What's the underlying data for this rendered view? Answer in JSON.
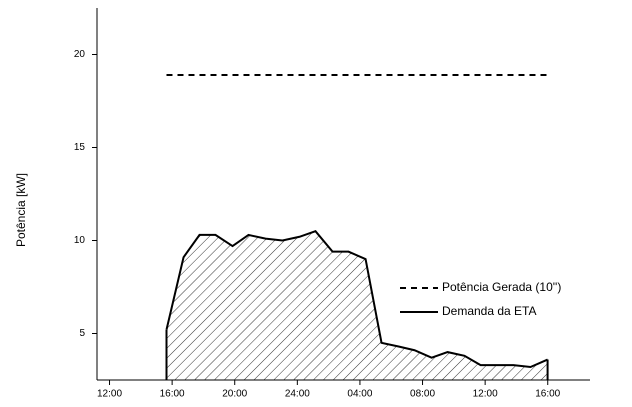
{
  "chart_data": {
    "type": "line",
    "ylabel": "Potência [kW]",
    "xlim": [
      -0.8,
      30.7
    ],
    "ylim": [
      2.5,
      22.5
    ],
    "xticks": [
      {
        "value": 0,
        "label": "12:00"
      },
      {
        "value": 4,
        "label": "16:00"
      },
      {
        "value": 8,
        "label": "20:00"
      },
      {
        "value": 12,
        "label": "24:00"
      },
      {
        "value": 16,
        "label": "04:00"
      },
      {
        "value": 20,
        "label": "08:00"
      },
      {
        "value": 24,
        "label": "12:00"
      },
      {
        "value": 28,
        "label": "16:00"
      }
    ],
    "yticks": [
      5,
      10,
      15,
      20
    ],
    "legend": "lower right",
    "series": [
      {
        "name": "Potência Gerada (10'')",
        "color": "#000000",
        "dash": true,
        "fill": false,
        "x": [
          3.64,
          27.99
        ],
        "values": [
          18.9,
          18.9
        ]
      },
      {
        "name": "Demanda da ETA",
        "color": "#000000",
        "dash": false,
        "fill": true,
        "x": [
          3.64,
          4.73,
          5.75,
          6.77,
          7.86,
          8.88,
          9.97,
          11.05,
          12.14,
          13.16,
          14.25,
          15.27,
          16.36,
          17.38,
          18.47,
          19.49,
          20.58,
          21.6,
          22.68,
          23.71,
          24.79,
          25.81,
          26.9,
          27.99
        ],
        "values": [
          5.2,
          9.1,
          10.3,
          10.3,
          9.7,
          10.3,
          10.1,
          10.0,
          10.2,
          10.5,
          9.4,
          9.4,
          9.0,
          4.5,
          4.3,
          4.1,
          3.7,
          4.0,
          3.8,
          3.3,
          3.3,
          3.3,
          3.2,
          3.6
        ]
      }
    ]
  }
}
